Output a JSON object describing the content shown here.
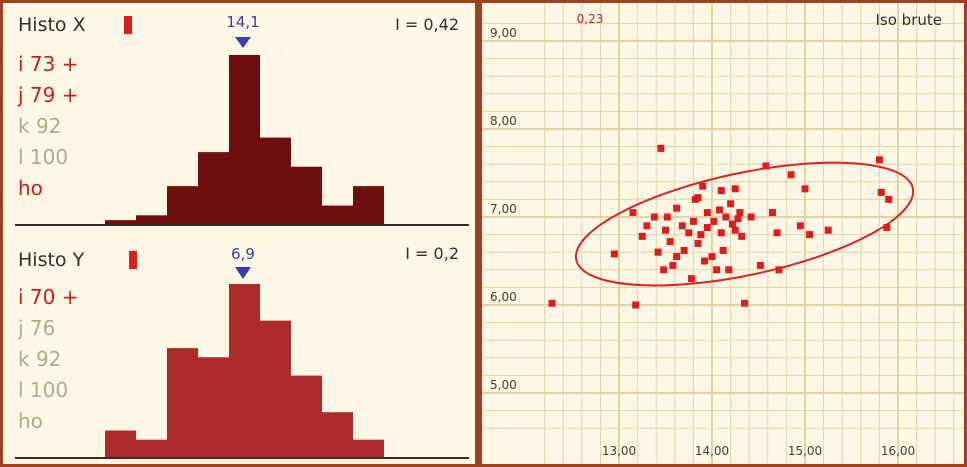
{
  "histo_x": {
    "title": "Histo X",
    "marker_label": "14,1",
    "index_label": "I = 0,42",
    "legend": [
      {
        "text": "i 73 +",
        "color": "#cc1c1c"
      },
      {
        "text": "j 79 +",
        "color": "#cc1c1c"
      },
      {
        "text": "k 92",
        "color": "#b3a98a"
      },
      {
        "text": "l 100",
        "color": "#b3a98a"
      },
      {
        "text": "ho",
        "color": "#cc1c1c"
      }
    ],
    "fill": "#6e0e0e"
  },
  "histo_y": {
    "title": "Histo Y",
    "marker_label": "6,9",
    "index_label": "I = 0,2",
    "legend": [
      {
        "text": "i 70 +",
        "color": "#cc1c1c"
      },
      {
        "text": "j 76",
        "color": "#b3a98a"
      },
      {
        "text": "k 92",
        "color": "#b3a98a"
      },
      {
        "text": "l 100",
        "color": "#b3a98a"
      },
      {
        "text": "ho",
        "color": "#b3a98a"
      }
    ],
    "fill": "#ad2b2b"
  },
  "scatter": {
    "corner_value": "0,23",
    "label": "Iso brute",
    "ellipse_color": "#dd2222"
  },
  "colors": {
    "accent_red": "#e01b1b",
    "marker_blue": "#3b3bb5",
    "grid": "#e3d2a5",
    "frame": "#a0401e"
  },
  "chart_data": [
    {
      "type": "bar",
      "name": "Histo X",
      "values": [
        1,
        2,
        8,
        15,
        35,
        18,
        12,
        4,
        8
      ],
      "marker": 14.1
    },
    {
      "type": "bar",
      "name": "Histo Y",
      "values": [
        3,
        2,
        12,
        11,
        19,
        15,
        9,
        5,
        2
      ],
      "marker": 6.9
    },
    {
      "type": "scatter",
      "xlim": [
        12.2,
        16.6
      ],
      "ylim": [
        4.6,
        9.2
      ],
      "xticks": [
        "13,00",
        "14,00",
        "15,00",
        "16,00"
      ],
      "yticks": [
        "5,00",
        "6,00",
        "7,00",
        "8,00",
        "9,00"
      ],
      "grid": true,
      "points": [
        [
          12.28,
          6.02
        ],
        [
          12.95,
          6.58
        ],
        [
          13.18,
          6.0
        ],
        [
          13.15,
          7.05
        ],
        [
          13.25,
          6.78
        ],
        [
          13.3,
          6.9
        ],
        [
          13.38,
          7.0
        ],
        [
          13.42,
          6.6
        ],
        [
          13.45,
          7.78
        ],
        [
          13.48,
          6.4
        ],
        [
          13.5,
          6.85
        ],
        [
          13.52,
          7.0
        ],
        [
          13.55,
          6.72
        ],
        [
          13.58,
          6.45
        ],
        [
          13.62,
          6.55
        ],
        [
          13.62,
          7.1
        ],
        [
          13.68,
          6.9
        ],
        [
          13.7,
          6.62
        ],
        [
          13.75,
          6.82
        ],
        [
          13.78,
          6.3
        ],
        [
          13.8,
          6.95
        ],
        [
          13.82,
          7.2
        ],
        [
          13.85,
          7.22
        ],
        [
          13.85,
          6.7
        ],
        [
          13.88,
          6.8
        ],
        [
          13.9,
          7.35
        ],
        [
          13.92,
          6.5
        ],
        [
          13.95,
          7.05
        ],
        [
          13.95,
          6.88
        ],
        [
          14.0,
          6.55
        ],
        [
          14.02,
          6.95
        ],
        [
          14.05,
          6.4
        ],
        [
          14.08,
          7.08
        ],
        [
          14.1,
          6.82
        ],
        [
          14.1,
          7.3
        ],
        [
          14.12,
          6.62
        ],
        [
          14.15,
          7.0
        ],
        [
          14.18,
          6.4
        ],
        [
          14.2,
          7.15
        ],
        [
          14.22,
          6.92
        ],
        [
          14.25,
          7.32
        ],
        [
          14.25,
          6.85
        ],
        [
          14.28,
          6.98
        ],
        [
          14.3,
          7.05
        ],
        [
          14.32,
          6.78
        ],
        [
          14.35,
          6.02
        ],
        [
          14.42,
          7.0
        ],
        [
          14.52,
          6.45
        ],
        [
          14.58,
          7.58
        ],
        [
          14.65,
          7.05
        ],
        [
          14.7,
          6.82
        ],
        [
          14.72,
          6.4
        ],
        [
          14.85,
          7.48
        ],
        [
          14.95,
          6.9
        ],
        [
          15.0,
          7.32
        ],
        [
          15.05,
          6.8
        ],
        [
          15.25,
          6.85
        ],
        [
          15.8,
          7.65
        ],
        [
          15.82,
          7.28
        ],
        [
          15.88,
          6.88
        ],
        [
          15.9,
          7.2
        ]
      ],
      "ellipse": {
        "cx": 14.35,
        "cy": 6.92,
        "rx": 1.85,
        "ry": 0.58,
        "angle_deg": -12
      }
    }
  ]
}
